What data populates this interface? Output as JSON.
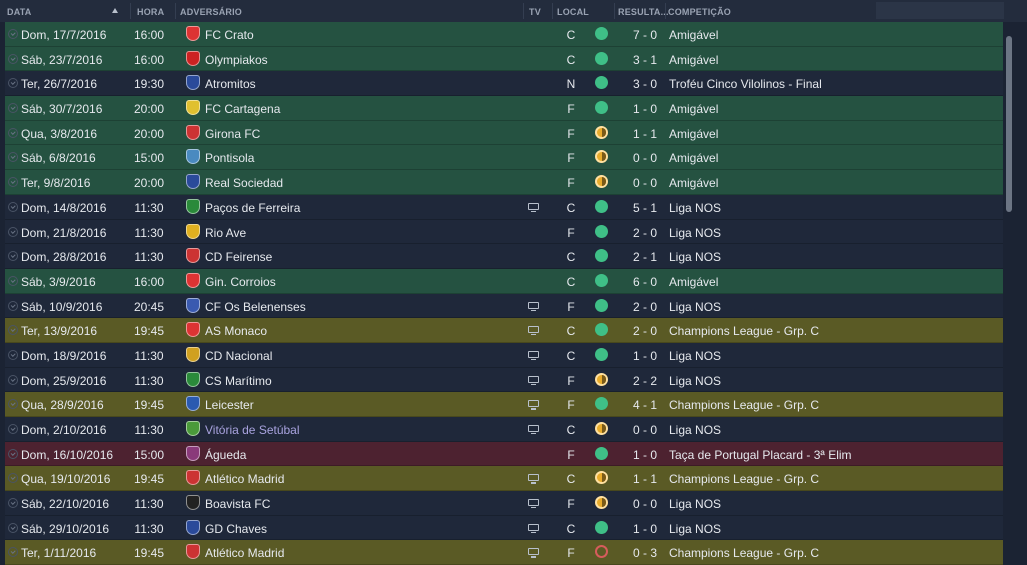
{
  "header": {
    "date": "DATA",
    "time": "HORA",
    "opponent": "ADVERSÁRIO",
    "tv": "TV",
    "venue": "LOCAL",
    "result": "RESULTA...",
    "competition": "COMPETIÇÃO"
  },
  "colors": {
    "friendly_row": "#255241",
    "league_row": "#1f283a",
    "champions_row": "#5a5a25",
    "cup_row": "#4d2230",
    "win": "#3fbf87",
    "draw": "#e9ac2c",
    "loss": "#d65c5c"
  },
  "matches": [
    {
      "date": "Dom, 17/7/2016",
      "time": "16:00",
      "opponent": "FC Crato",
      "tv": false,
      "venue": "C",
      "outcome": "win",
      "score": "7 - 0",
      "competition": "Amigável",
      "row": "green",
      "crest": "#d33"
    },
    {
      "date": "Sáb, 23/7/2016",
      "time": "16:00",
      "opponent": "Olympiakos",
      "tv": false,
      "venue": "C",
      "outcome": "win",
      "score": "3 - 1",
      "competition": "Amigável",
      "row": "green",
      "crest": "#c22"
    },
    {
      "date": "Ter, 26/7/2016",
      "time": "19:30",
      "opponent": "Atromitos",
      "tv": false,
      "venue": "N",
      "outcome": "win",
      "score": "3 - 0",
      "competition": "Troféu Cinco Vilolinos - Final",
      "row": "dark",
      "crest": "#2a4a9a"
    },
    {
      "date": "Sáb, 30/7/2016",
      "time": "20:00",
      "opponent": "FC Cartagena",
      "tv": false,
      "venue": "F",
      "outcome": "win",
      "score": "1 - 0",
      "competition": "Amigável",
      "row": "green",
      "crest": "#e0c030"
    },
    {
      "date": "Qua, 3/8/2016",
      "time": "20:00",
      "opponent": "Girona FC",
      "tv": false,
      "venue": "F",
      "outcome": "draw",
      "score": "1 - 1",
      "competition": "Amigável",
      "row": "green",
      "crest": "#c33"
    },
    {
      "date": "Sáb, 6/8/2016",
      "time": "15:00",
      "opponent": "Pontisola",
      "tv": false,
      "venue": "F",
      "outcome": "draw",
      "score": "0 - 0",
      "competition": "Amigável",
      "row": "green",
      "crest": "#4a8ac0"
    },
    {
      "date": "Ter, 9/8/2016",
      "time": "20:00",
      "opponent": "Real Sociedad",
      "tv": false,
      "venue": "F",
      "outcome": "draw",
      "score": "0 - 0",
      "competition": "Amigável",
      "row": "green",
      "crest": "#2a4a9a"
    },
    {
      "date": "Dom, 14/8/2016",
      "time": "11:30",
      "opponent": "Paços de Ferreira",
      "tv": true,
      "venue": "C",
      "outcome": "win",
      "score": "5 - 1",
      "competition": "Liga NOS",
      "row": "dark",
      "crest": "#2a8a3a"
    },
    {
      "date": "Dom, 21/8/2016",
      "time": "11:30",
      "opponent": "Rio Ave",
      "tv": false,
      "venue": "F",
      "outcome": "win",
      "score": "2 - 0",
      "competition": "Liga NOS",
      "row": "dark",
      "crest": "#e0b020"
    },
    {
      "date": "Dom, 28/8/2016",
      "time": "11:30",
      "opponent": "CD Feirense",
      "tv": false,
      "venue": "C",
      "outcome": "win",
      "score": "2 - 1",
      "competition": "Liga NOS",
      "row": "dark",
      "crest": "#c33"
    },
    {
      "date": "Sáb, 3/9/2016",
      "time": "16:00",
      "opponent": "Gin. Corroios",
      "tv": false,
      "venue": "C",
      "outcome": "win",
      "score": "6 - 0",
      "competition": "Amigável",
      "row": "green",
      "crest": "#d33"
    },
    {
      "date": "Sáb, 10/9/2016",
      "time": "20:45",
      "opponent": "CF Os Belenenses",
      "tv": true,
      "venue": "F",
      "outcome": "win",
      "score": "2 - 0",
      "competition": "Liga NOS",
      "row": "dark",
      "crest": "#3a5ab0"
    },
    {
      "date": "Ter, 13/9/2016",
      "time": "19:45",
      "opponent": "AS Monaco",
      "tv": true,
      "venue": "C",
      "outcome": "win",
      "score": "2 - 0",
      "competition": "Champions League - Grp. C",
      "row": "yellow",
      "crest": "#d33"
    },
    {
      "date": "Dom, 18/9/2016",
      "time": "11:30",
      "opponent": "CD Nacional",
      "tv": true,
      "venue": "C",
      "outcome": "win",
      "score": "1 - 0",
      "competition": "Liga NOS",
      "row": "dark",
      "crest": "#d0a020"
    },
    {
      "date": "Dom, 25/9/2016",
      "time": "11:30",
      "opponent": "CS Marítimo",
      "tv": true,
      "venue": "F",
      "outcome": "draw",
      "score": "2 - 2",
      "competition": "Liga NOS",
      "row": "dark",
      "crest": "#2a8a3a"
    },
    {
      "date": "Qua, 28/9/2016",
      "time": "19:45",
      "opponent": "Leicester",
      "tv": true,
      "venue": "F",
      "outcome": "win",
      "score": "4 - 1",
      "competition": "Champions League - Grp. C",
      "row": "yellow",
      "crest": "#2a5ab0"
    },
    {
      "date": "Dom, 2/10/2016",
      "time": "11:30",
      "opponent": "Vitória de Setúbal",
      "tv": true,
      "venue": "C",
      "outcome": "draw",
      "score": "0 - 0",
      "competition": "Liga NOS",
      "row": "dark",
      "crest": "#4a9a3a",
      "link": true
    },
    {
      "date": "Dom, 16/10/2016",
      "time": "15:00",
      "opponent": "Águeda",
      "tv": false,
      "venue": "F",
      "outcome": "win",
      "score": "1 - 0",
      "competition": "Taça de Portugal Placard - 3ª Elim",
      "row": "red",
      "crest": "#8a3a7a"
    },
    {
      "date": "Qua, 19/10/2016",
      "time": "19:45",
      "opponent": "Atlético Madrid",
      "tv": true,
      "venue": "C",
      "outcome": "draw",
      "score": "1 - 1",
      "competition": "Champions League - Grp. C",
      "row": "yellow",
      "crest": "#c33"
    },
    {
      "date": "Sáb, 22/10/2016",
      "time": "11:30",
      "opponent": "Boavista FC",
      "tv": true,
      "venue": "F",
      "outcome": "draw",
      "score": "0 - 0",
      "competition": "Liga NOS",
      "row": "dark",
      "crest": "#222"
    },
    {
      "date": "Sáb, 29/10/2016",
      "time": "11:30",
      "opponent": "GD Chaves",
      "tv": true,
      "venue": "C",
      "outcome": "win",
      "score": "1 - 0",
      "competition": "Liga NOS",
      "row": "dark",
      "crest": "#2a4a9a"
    },
    {
      "date": "Ter, 1/11/2016",
      "time": "19:45",
      "opponent": "Atlético Madrid",
      "tv": true,
      "venue": "F",
      "outcome": "loss",
      "score": "0 - 3",
      "competition": "Champions League - Grp. C",
      "row": "yellow",
      "crest": "#c33"
    }
  ]
}
